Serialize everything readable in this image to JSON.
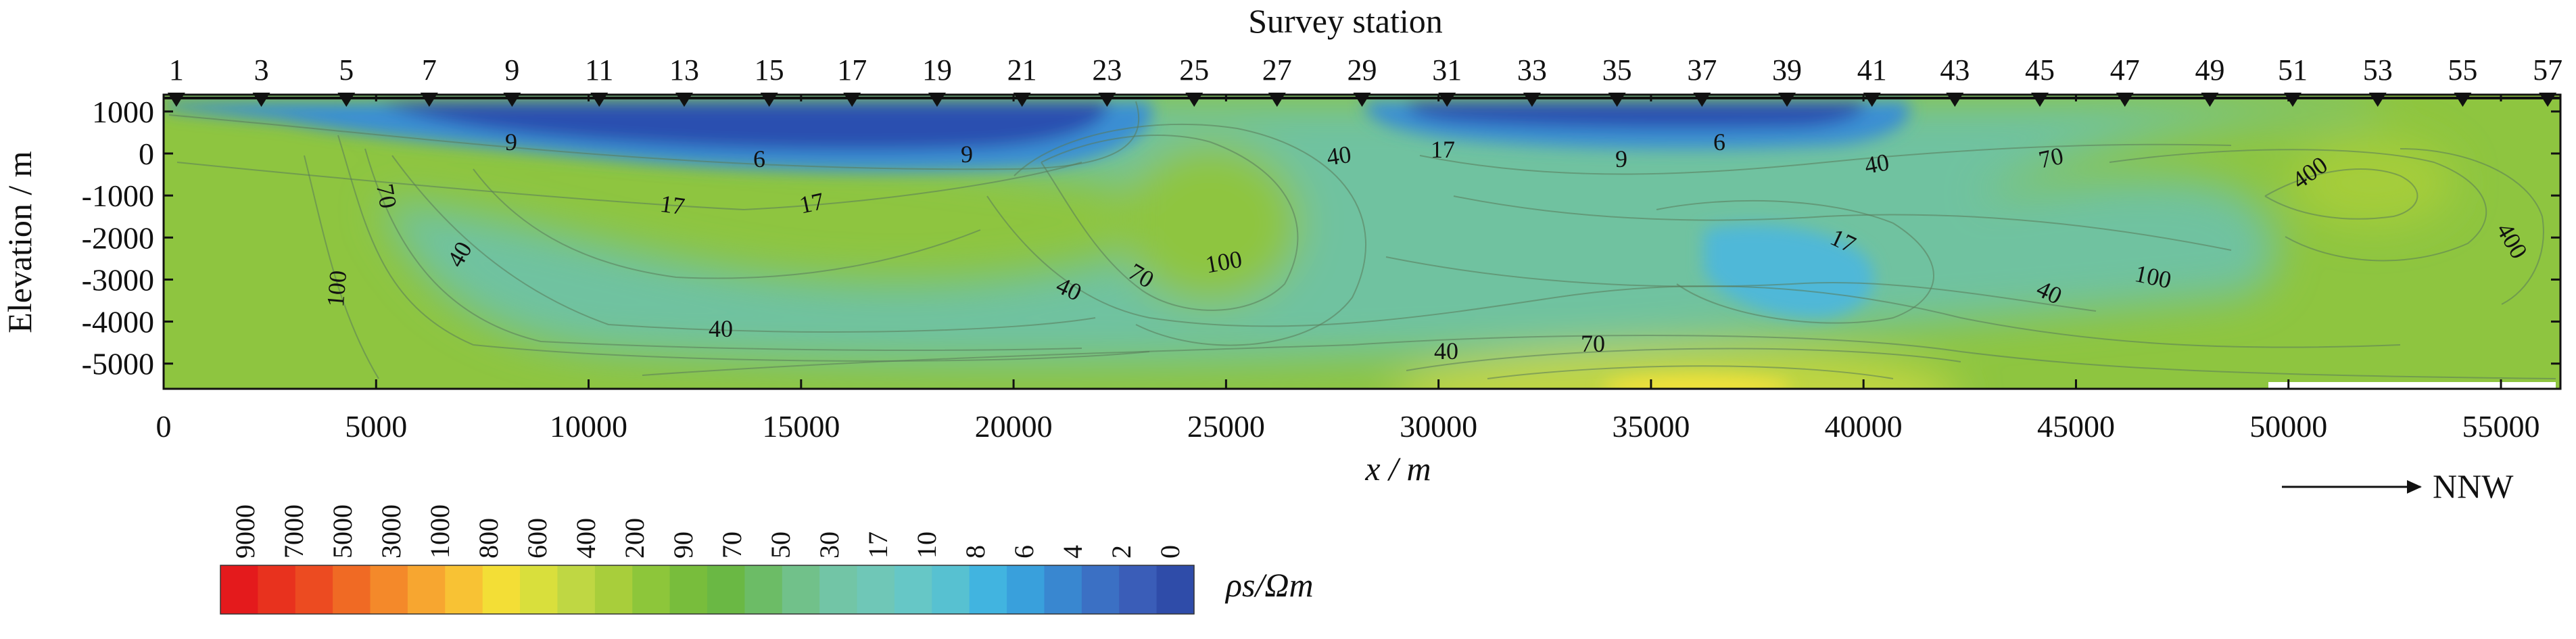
{
  "chart_data": {
    "type": "heatmap",
    "title": "Survey station",
    "xlabel": "x / m",
    "ylabel": "Elevation / m",
    "xlim": [
      0,
      56400
    ],
    "ylim": [
      -5600,
      1400
    ],
    "x_ticks": [
      0,
      5000,
      10000,
      15000,
      20000,
      25000,
      30000,
      35000,
      40000,
      45000,
      50000,
      55000
    ],
    "y_ticks": [
      1000,
      0,
      -1000,
      -2000,
      -3000,
      -4000,
      -5000
    ],
    "stations": {
      "labels": [
        "1",
        "3",
        "5",
        "7",
        "9",
        "11",
        "13",
        "15",
        "17",
        "19",
        "21",
        "23",
        "25",
        "27",
        "29",
        "31",
        "33",
        "35",
        "37",
        "39",
        "41",
        "43",
        "45",
        "47",
        "49",
        "51",
        "53",
        "55",
        "57"
      ],
      "x": [
        300,
        2300,
        4300,
        6250,
        8200,
        10250,
        12250,
        14250,
        16200,
        18200,
        20200,
        22200,
        24250,
        26200,
        28200,
        30200,
        32200,
        34200,
        36200,
        38200,
        40200,
        42150,
        44150,
        46150,
        48150,
        50100,
        52100,
        54100,
        56100
      ]
    },
    "colorbar": {
      "label": "ρs/Ωm",
      "tick_labels": [
        "9000",
        "7000",
        "5000",
        "3000",
        "1000",
        "800",
        "600",
        "400",
        "200",
        "90",
        "70",
        "50",
        "30",
        "17",
        "10",
        "8",
        "6",
        "4",
        "2",
        "0"
      ],
      "colors": [
        "#e41a1c",
        "#e8321e",
        "#ec4b21",
        "#f06a24",
        "#f4892a",
        "#f7a630",
        "#f8c234",
        "#f3de36",
        "#d9df3c",
        "#bfd743",
        "#a8ce3b",
        "#8dc63a",
        "#78bd3c",
        "#6ab844",
        "#6cbc66",
        "#71c18a",
        "#72c5a6",
        "#6fc7b7",
        "#66c7c6",
        "#57c1d1",
        "#41b4e0",
        "#39a0dc",
        "#3987d0",
        "#3b70c4",
        "#3a5db8",
        "#2f4ca9"
      ]
    },
    "contour_labels": [
      "9",
      "6",
      "9",
      "70",
      "100",
      "40",
      "17",
      "17",
      "40",
      "40",
      "70",
      "100",
      "40",
      "17",
      "9",
      "6",
      "40",
      "70",
      "17",
      "40",
      "100",
      "400",
      "400",
      "40",
      "70"
    ],
    "direction": "NNW",
    "annotations": [
      "→ NNW"
    ]
  }
}
